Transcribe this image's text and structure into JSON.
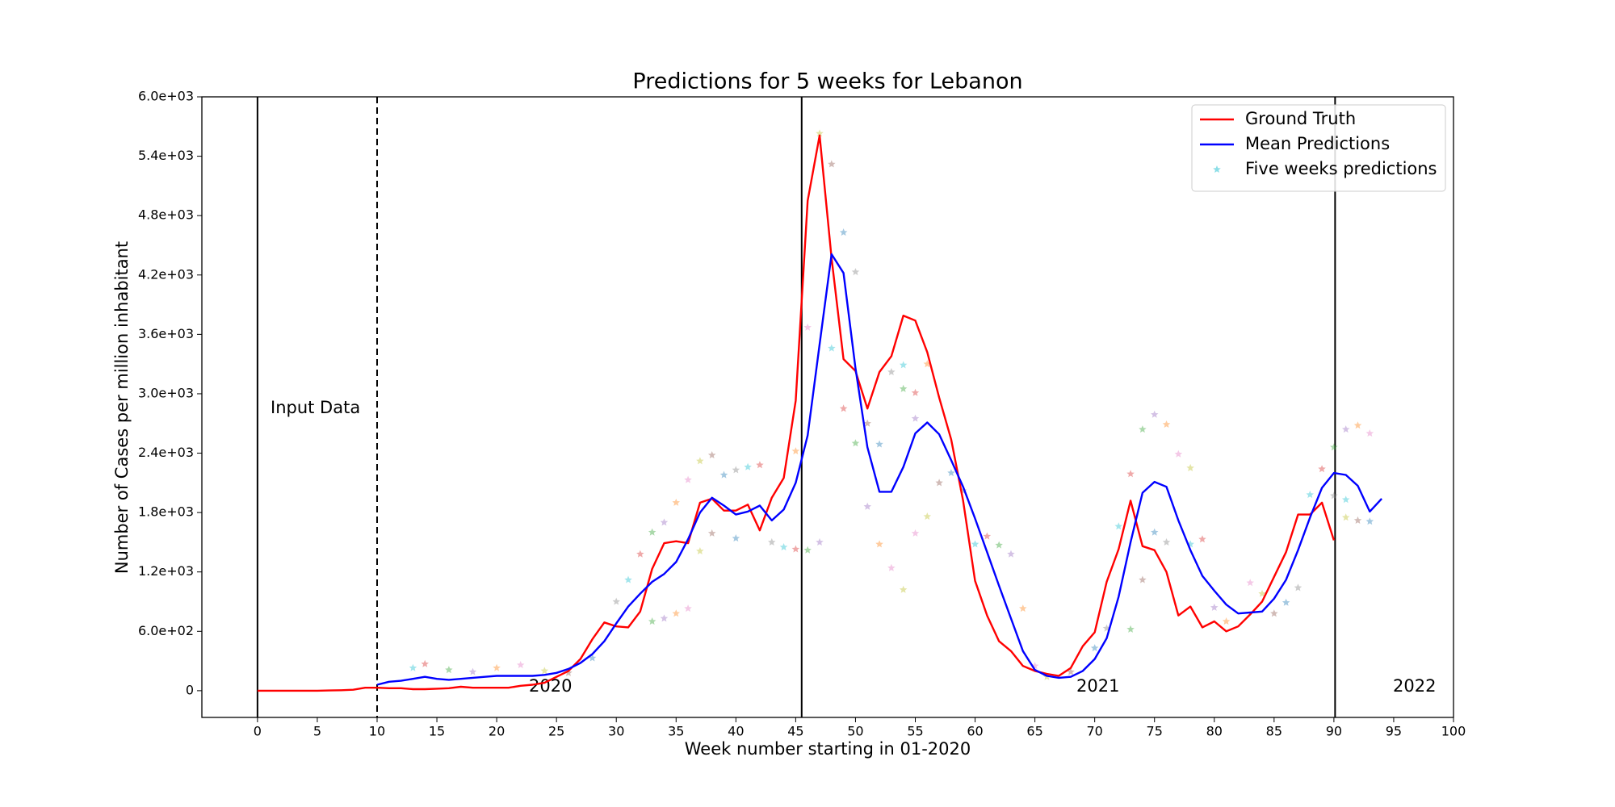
{
  "chart_data": {
    "type": "line",
    "title": "Predictions for 5 weeks for Lebanon",
    "x_label": "Week number starting in 01-2020",
    "y_label": "Number of Cases per million inhabitant",
    "xlim": [
      -4.65,
      100
    ],
    "ylim": [
      -270,
      6000
    ],
    "xticks": [
      0,
      5,
      10,
      15,
      20,
      25,
      30,
      35,
      40,
      45,
      50,
      55,
      60,
      65,
      70,
      75,
      80,
      85,
      90,
      95,
      100
    ],
    "yticks": [
      0,
      {
        "value": 600,
        "label": "6.0e+02"
      },
      {
        "value": 1200,
        "label": "1.2e+03"
      },
      {
        "value": 1800,
        "label": "1.8e+03"
      },
      {
        "value": 2400,
        "label": "2.4e+03"
      },
      {
        "value": 3000,
        "label": "3.0e+03"
      },
      {
        "value": 3600,
        "label": "3.6e+03"
      },
      {
        "value": 4200,
        "label": "4.2e+03"
      },
      {
        "value": 4800,
        "label": "4.8e+03"
      },
      {
        "value": 5400,
        "label": "5.4e+03"
      },
      {
        "value": 6000,
        "label": "6.0e+03"
      }
    ],
    "legend": "upper right",
    "vlines": [
      {
        "x": 0,
        "style": "solid"
      },
      {
        "x": 10,
        "style": "dashed"
      },
      {
        "x": 45.5,
        "style": "solid"
      },
      {
        "x": 90.1,
        "style": "solid"
      }
    ],
    "annotations": [
      "Input Data",
      "2020",
      "2021",
      "2022"
    ],
    "series": [
      {
        "name": "Ground Truth",
        "color": "#ff0000",
        "x": [
          0,
          1,
          2,
          3,
          4,
          5,
          6,
          7,
          8,
          9,
          10,
          11,
          12,
          13,
          14,
          15,
          16,
          17,
          18,
          19,
          20,
          21,
          22,
          23,
          24,
          25,
          26,
          27,
          28,
          29,
          30,
          31,
          32,
          33,
          34,
          35,
          36,
          37,
          38,
          39,
          40,
          41,
          42,
          43,
          44,
          45,
          46,
          47,
          48,
          49,
          50,
          51,
          52,
          53,
          54,
          55,
          56,
          57,
          58,
          59,
          60,
          61,
          62,
          63,
          64,
          65,
          66,
          67,
          68,
          69,
          70,
          71,
          72,
          73,
          74,
          75,
          76,
          77,
          78,
          79,
          80,
          81,
          82,
          83,
          84,
          85,
          86,
          87,
          88,
          89,
          90
        ],
        "values": [
          0,
          0,
          0,
          0,
          0,
          0,
          2,
          5,
          10,
          30,
          30,
          25,
          25,
          15,
          15,
          20,
          25,
          40,
          30,
          30,
          30,
          30,
          50,
          60,
          80,
          140,
          200,
          320,
          520,
          690,
          650,
          640,
          800,
          1230,
          1490,
          1510,
          1490,
          1900,
          1940,
          1820,
          1820,
          1880,
          1620,
          1950,
          2150,
          2930,
          4950,
          5610,
          4370,
          3350,
          3230,
          2850,
          3220,
          3380,
          3790,
          3740,
          3420,
          2960,
          2540,
          1920,
          1110,
          760,
          500,
          400,
          250,
          200,
          170,
          150,
          230,
          450,
          590,
          1100,
          1430,
          1920,
          1460,
          1420,
          1200,
          760,
          850,
          640,
          700,
          600,
          650,
          770,
          900,
          1150,
          1400,
          1780,
          1780,
          1900,
          1520
        ]
      },
      {
        "name": "Mean Predictions",
        "color": "#0000ff",
        "x": [
          10,
          11,
          12,
          13,
          14,
          15,
          16,
          17,
          18,
          19,
          20,
          21,
          22,
          23,
          24,
          25,
          26,
          27,
          28,
          29,
          30,
          31,
          32,
          33,
          34,
          35,
          36,
          37,
          38,
          39,
          40,
          41,
          42,
          43,
          44,
          45,
          46,
          47,
          48,
          49,
          50,
          51,
          52,
          53,
          54,
          55,
          56,
          57,
          58,
          59,
          60,
          61,
          62,
          63,
          64,
          65,
          66,
          67,
          68,
          69,
          70,
          71,
          72,
          73,
          74,
          75,
          76,
          77,
          78,
          79,
          80,
          81,
          82,
          83,
          84,
          85,
          86,
          87,
          88,
          89,
          90,
          91,
          92,
          93,
          94
        ],
        "values": [
          60,
          90,
          100,
          120,
          140,
          120,
          110,
          120,
          130,
          140,
          150,
          150,
          150,
          150,
          160,
          180,
          220,
          280,
          370,
          500,
          680,
          850,
          980,
          1100,
          1180,
          1300,
          1530,
          1800,
          1950,
          1870,
          1780,
          1810,
          1870,
          1720,
          1830,
          2100,
          2580,
          3500,
          4410,
          4220,
          3260,
          2460,
          2010,
          2010,
          2260,
          2600,
          2710,
          2590,
          2330,
          2060,
          1740,
          1400,
          1060,
          730,
          400,
          210,
          150,
          130,
          140,
          200,
          320,
          530,
          950,
          1500,
          2000,
          2110,
          2060,
          1720,
          1420,
          1160,
          1010,
          870,
          780,
          790,
          800,
          930,
          1120,
          1420,
          1750,
          2050,
          2200,
          2180,
          2070,
          1810,
          1940
        ]
      },
      {
        "name": "Five weeks predictions",
        "type": "scatter",
        "colors": [
          "#17becf",
          "#d62728",
          "#2ca02c",
          "#9467bd",
          "#ff7f0e",
          "#e377c2",
          "#bcbd22",
          "#8c564b",
          "#1f77b4",
          "#7f7f7f"
        ],
        "x": [
          13,
          14,
          16,
          18,
          20,
          22,
          24,
          26,
          28,
          30,
          31,
          32,
          33,
          34,
          35,
          36,
          37,
          38,
          39,
          40,
          41,
          42,
          33,
          34,
          35,
          36,
          37,
          38,
          40,
          43,
          44,
          45,
          46,
          47,
          45,
          46,
          47,
          48,
          49,
          50,
          48,
          49,
          50,
          51,
          52,
          53,
          54,
          51,
          52,
          53,
          54,
          55,
          54,
          55,
          56,
          55,
          56,
          57,
          58,
          59,
          60,
          61,
          62,
          63,
          64,
          65,
          66,
          68,
          70,
          71,
          72,
          73,
          74,
          75,
          76,
          77,
          78,
          74,
          75,
          76,
          78,
          79,
          73,
          80,
          81,
          83,
          84,
          85,
          86,
          87,
          88,
          89,
          90,
          91,
          92,
          93,
          91,
          92,
          93,
          90,
          91
        ],
        "values": [
          230,
          270,
          210,
          190,
          230,
          260,
          200,
          180,
          330,
          900,
          1120,
          1380,
          1600,
          1700,
          1900,
          2130,
          2320,
          2380,
          2180,
          2230,
          2260,
          2280,
          700,
          730,
          780,
          830,
          1410,
          1590,
          1540,
          1500,
          1450,
          1430,
          1420,
          1500,
          2420,
          3670,
          5630,
          5320,
          4630,
          4230,
          3460,
          2850,
          2500,
          1860,
          1480,
          1240,
          1020,
          2700,
          2490,
          3220,
          3290,
          3010,
          3050,
          2750,
          3300,
          1590,
          1760,
          2100,
          2200,
          2020,
          1480,
          1560,
          1470,
          1380,
          830,
          250,
          140,
          190,
          430,
          630,
          1660,
          2190,
          2640,
          2790,
          2690,
          2390,
          2250,
          1120,
          1600,
          1500,
          1480,
          1530,
          620,
          840,
          700,
          1090,
          980,
          780,
          890,
          1040,
          1980,
          2240,
          2460,
          2640,
          2680,
          2600,
          1750,
          1720,
          1710,
          1970,
          1930
        ]
      }
    ]
  }
}
